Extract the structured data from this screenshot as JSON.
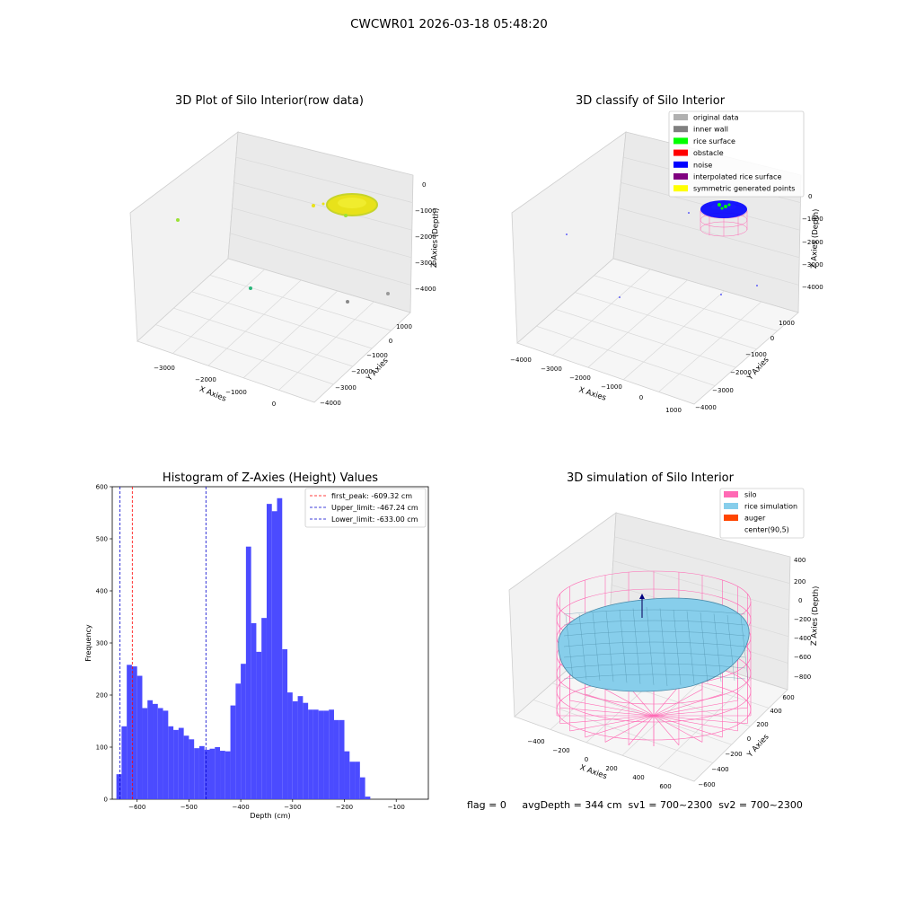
{
  "suptitle": "CWCWR01 2026-03-18 05:48:20",
  "status_line": "flag = 0     avgDepth = 344 cm  sv1 = 700~2300  sv2 = 700~2300",
  "colors": {
    "raw_points": "#e8e21a",
    "raw_points_green": "#9be236",
    "original": "#b0b0b0",
    "inner_wall": "#808080",
    "rice_surface": "#00ff00",
    "obstacle": "#ff0000",
    "noise": "#0000ff",
    "interpolated": "#800080",
    "symmetric": "#ffff00",
    "silo": "#ff69b4",
    "rice_sim": "#87ceeb",
    "auger": "#ff4500",
    "hist_bar": "#4b4bff"
  },
  "chart_data": [
    {
      "type": "scatter3d",
      "title": "3D Plot of Silo Interior(row data)",
      "xlabel": "X Axies",
      "ylabel": "Y Axies",
      "zlabel": "Z Axies (Depth)",
      "x_ticks": [
        "−3000",
        "−2000",
        "−1000",
        "0"
      ],
      "y_ticks": [
        "−4000",
        "−3000",
        "−2000",
        "−1000",
        "0",
        "1000"
      ],
      "z_ticks": [
        "0",
        "−1000",
        "−2000",
        "−3000",
        "−4000"
      ]
    },
    {
      "type": "scatter3d",
      "title": "3D classify of Silo Interior",
      "xlabel": "X Axies",
      "ylabel": "Y Axies",
      "zlabel": "Z Axies (Depth)",
      "x_ticks": [
        "−4000",
        "−3000",
        "−2000",
        "−1000",
        "0",
        "1000"
      ],
      "y_ticks": [
        "−4000",
        "−3000",
        "−2000",
        "−1000",
        "0",
        "1000"
      ],
      "z_ticks": [
        "0",
        "−1000",
        "−2000",
        "−3000",
        "−4000"
      ],
      "legend": [
        "original data",
        "inner wall",
        "rice surface",
        "obstacle",
        "noise",
        "interpolated rice surface",
        "symmetric generated points"
      ],
      "legend_position": "top-right"
    },
    {
      "type": "bar",
      "title": "Histogram of Z-Axies (Height) Values",
      "xlabel": "Depth (cm)",
      "ylabel": "Frequency",
      "xlim": [
        -648,
        -38
      ],
      "ylim": [
        0,
        600
      ],
      "x_ticks": [
        -600,
        -500,
        -400,
        -300,
        -200,
        -100
      ],
      "x_tick_labels": [
        "−600",
        "−500",
        "−400",
        "−300",
        "−200",
        "−100"
      ],
      "y_ticks": [
        0,
        100,
        200,
        300,
        400,
        500,
        600
      ],
      "y_tick_labels": [
        "0",
        "100",
        "200",
        "300",
        "400",
        "500",
        "600"
      ],
      "bin_start": -640,
      "bin_width": 10,
      "values": [
        48,
        140,
        258,
        255,
        237,
        175,
        190,
        183,
        175,
        170,
        140,
        133,
        137,
        122,
        115,
        98,
        102,
        95,
        97,
        100,
        93,
        92,
        180,
        222,
        260,
        485,
        338,
        283,
        348,
        567,
        553,
        578,
        288,
        205,
        188,
        198,
        185,
        172,
        172,
        170,
        170,
        172,
        152,
        152,
        92,
        72,
        72,
        42,
        5
      ],
      "lines": [
        {
          "label": "first_peak: -609.32 cm",
          "value": -609.32,
          "color": "#ff0000"
        },
        {
          "label": "Upper_limit: -467.24 cm",
          "value": -467.24,
          "color": "#0000cd"
        },
        {
          "label": "Lower_limit: -633.00 cm",
          "value": -633.0,
          "color": "#0000cd"
        }
      ],
      "legend_position": "top-right"
    },
    {
      "type": "surface3d",
      "title": "3D simulation of Silo Interior",
      "xlabel": "X Axies",
      "ylabel": "Y Axies",
      "zlabel": "Z Axies (Depth)",
      "x_ticks": [
        "−400",
        "−200",
        "0",
        "200",
        "400",
        "600"
      ],
      "y_ticks": [
        "−600",
        "−400",
        "−200",
        "0",
        "200",
        "400",
        "600"
      ],
      "z_ticks": [
        "400",
        "200",
        "0",
        "−200",
        "−400",
        "−600",
        "−800"
      ],
      "legend": [
        "silo",
        "rice simulation",
        "auger",
        "center(90,5)"
      ],
      "legend_position": "top-right"
    }
  ]
}
